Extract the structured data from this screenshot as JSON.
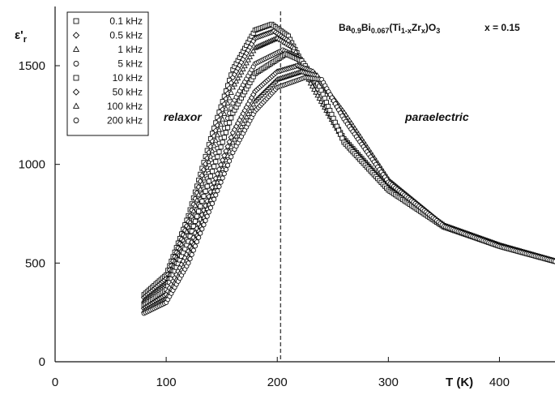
{
  "chart_data": {
    "type": "scatter",
    "title": "",
    "formula": {
      "parts": [
        {
          "t": "Ba",
          "sub": false
        },
        {
          "t": "0.9",
          "sub": true
        },
        {
          "t": "Bi",
          "sub": false
        },
        {
          "t": "0.067",
          "sub": true
        },
        {
          "t": "(Ti",
          "sub": false
        },
        {
          "t": "1-x",
          "sub": true
        },
        {
          "t": "Zr",
          "sub": false
        },
        {
          "t": "x",
          "sub": true
        },
        {
          "t": ")O",
          "sub": false
        },
        {
          "t": "3",
          "sub": true
        }
      ],
      "composition": "x = 0.15"
    },
    "xlabel": "T (K)",
    "ylabel": {
      "main": "ε'",
      "sub": "r"
    },
    "xlim": [
      0,
      450
    ],
    "ylim": [
      0,
      1800
    ],
    "xticks": [
      0,
      100,
      200,
      300,
      400
    ],
    "yticks": [
      0,
      500,
      1000,
      1500
    ],
    "vline_x": 203,
    "annotations": [
      "relaxor",
      "paraelectric"
    ],
    "legend": {
      "placement": "top-left"
    },
    "series": [
      {
        "name": "0.1 kHz",
        "marker": "square",
        "x": [
          80,
          100,
          120,
          140,
          160,
          180,
          195,
          210,
          230,
          260,
          300,
          350,
          400,
          450
        ],
        "values": [
          340,
          440,
          740,
          1130,
          1480,
          1680,
          1710,
          1650,
          1430,
          1130,
          880,
          690,
          590,
          510
        ]
      },
      {
        "name": "0.5 kHz",
        "marker": "diamond",
        "x": [
          80,
          100,
          120,
          140,
          160,
          180,
          197,
          210,
          230,
          260,
          300,
          350,
          400,
          450
        ],
        "values": [
          325,
          420,
          710,
          1090,
          1440,
          1640,
          1675,
          1625,
          1420,
          1125,
          878,
          688,
          590,
          510
        ]
      },
      {
        "name": "1 kHz",
        "marker": "triangle",
        "x": [
          80,
          100,
          120,
          140,
          160,
          180,
          200,
          215,
          230,
          260,
          300,
          350,
          400,
          450
        ],
        "values": [
          310,
          400,
          680,
          1040,
          1390,
          1590,
          1640,
          1590,
          1410,
          1120,
          876,
          686,
          588,
          510
        ]
      },
      {
        "name": "5 kHz",
        "marker": "circle",
        "x": [
          80,
          100,
          120,
          140,
          160,
          180,
          205,
          220,
          235,
          260,
          300,
          350,
          400,
          450
        ],
        "values": [
          295,
          380,
          640,
          980,
          1310,
          1510,
          1580,
          1540,
          1400,
          1115,
          872,
          684,
          587,
          509
        ]
      },
      {
        "name": "10 kHz",
        "marker": "square",
        "x": [
          80,
          100,
          120,
          140,
          160,
          180,
          208,
          222,
          238,
          260,
          300,
          350,
          400,
          450
        ],
        "values": [
          285,
          365,
          610,
          940,
          1260,
          1460,
          1560,
          1525,
          1395,
          1112,
          870,
          683,
          586,
          509
        ]
      },
      {
        "name": "50 kHz",
        "marker": "diamond",
        "x": [
          80,
          100,
          120,
          140,
          160,
          180,
          200,
          218,
          232,
          260,
          300,
          350,
          400,
          450
        ],
        "values": [
          270,
          340,
          560,
          860,
          1160,
          1370,
          1470,
          1500,
          1470,
          1260,
          920,
          690,
          585,
          508
        ]
      },
      {
        "name": "100 kHz",
        "marker": "triangle",
        "x": [
          80,
          100,
          120,
          140,
          160,
          180,
          200,
          222,
          236,
          260,
          300,
          350,
          400,
          450
        ],
        "values": [
          258,
          320,
          530,
          820,
          1110,
          1320,
          1430,
          1470,
          1450,
          1245,
          915,
          688,
          585,
          508
        ]
      },
      {
        "name": "200 kHz",
        "marker": "circle",
        "x": [
          80,
          100,
          120,
          140,
          160,
          180,
          200,
          225,
          240,
          260,
          300,
          350,
          400,
          450
        ],
        "values": [
          245,
          300,
          500,
          780,
          1060,
          1270,
          1390,
          1440,
          1430,
          1230,
          910,
          686,
          584,
          508
        ]
      }
    ]
  }
}
